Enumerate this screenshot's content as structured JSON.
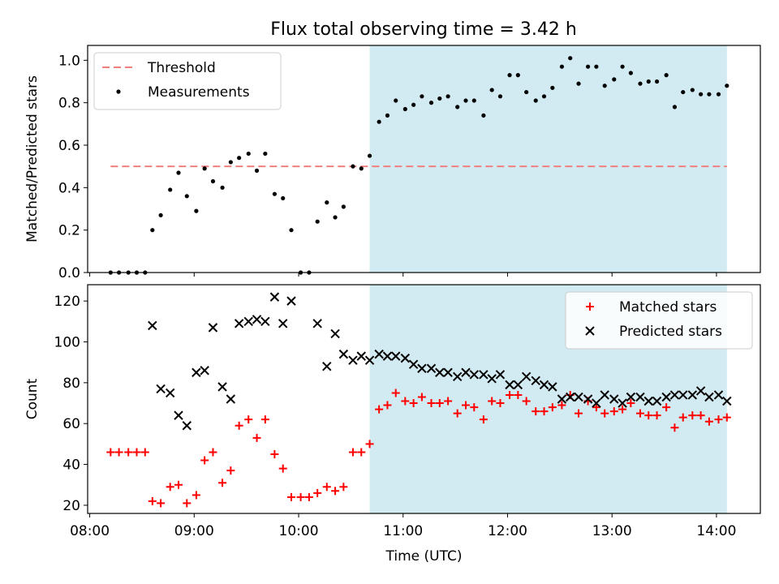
{
  "figure_title": "Flux total observing time = 3.42 h",
  "chart_data": [
    {
      "type": "scatter",
      "ylabel": "Matched/Predicted stars",
      "xlabel": "",
      "ylim": [
        0,
        1.07
      ],
      "yticks": [
        0.0,
        0.2,
        0.4,
        0.6,
        0.8,
        1.0
      ],
      "ytick_labels": [
        "0.0",
        "0.2",
        "0.4",
        "0.6",
        "0.8",
        "1.0"
      ],
      "x_axis": "time (hours, UTC)",
      "xlim": [
        7.98,
        14.42
      ],
      "shaded_interval": {
        "start": 10.68,
        "end": 14.1,
        "color": "#add8e6"
      },
      "legend_position": "upper left",
      "threshold": {
        "name": "Threshold",
        "y": 0.5,
        "x_start": 8.2,
        "x_end": 14.1,
        "color": "#f08080",
        "style": "dashed"
      },
      "series": [
        {
          "name": "Measurements",
          "marker": "dot",
          "color": "#000000",
          "x": [
            8.2,
            8.28,
            8.37,
            8.45,
            8.53,
            8.6,
            8.68,
            8.77,
            8.85,
            8.93,
            9.02,
            9.1,
            9.18,
            9.27,
            9.35,
            9.43,
            9.52,
            9.6,
            9.68,
            9.77,
            9.85,
            9.93,
            10.02,
            10.1,
            10.18,
            10.27,
            10.35,
            10.43,
            10.52,
            10.6,
            10.68,
            10.77,
            10.85,
            10.93,
            11.02,
            11.1,
            11.18,
            11.27,
            11.35,
            11.43,
            11.52,
            11.6,
            11.68,
            11.77,
            11.85,
            11.93,
            12.02,
            12.1,
            12.18,
            12.27,
            12.35,
            12.43,
            12.52,
            12.6,
            12.68,
            12.77,
            12.85,
            12.93,
            13.02,
            13.1,
            13.18,
            13.27,
            13.35,
            13.43,
            13.52,
            13.6,
            13.68,
            13.77,
            13.85,
            13.93,
            14.02,
            14.1
          ],
          "y": [
            0.0,
            0.0,
            0.0,
            0.0,
            0.0,
            0.2,
            0.27,
            0.39,
            0.47,
            0.36,
            0.29,
            0.49,
            0.43,
            0.4,
            0.52,
            0.54,
            0.56,
            0.48,
            0.56,
            0.37,
            0.35,
            0.2,
            0.0,
            0.0,
            0.24,
            0.33,
            0.26,
            0.31,
            0.5,
            0.49,
            0.55,
            0.71,
            0.74,
            0.81,
            0.77,
            0.79,
            0.83,
            0.8,
            0.82,
            0.83,
            0.78,
            0.81,
            0.81,
            0.74,
            0.86,
            0.83,
            0.93,
            0.93,
            0.85,
            0.81,
            0.83,
            0.87,
            0.97,
            1.01,
            0.89,
            0.97,
            0.97,
            0.88,
            0.91,
            0.97,
            0.94,
            0.89,
            0.9,
            0.9,
            0.93,
            0.78,
            0.85,
            0.86,
            0.84,
            0.84,
            0.84,
            0.88
          ]
        }
      ]
    },
    {
      "type": "scatter",
      "ylabel": "Count",
      "xlabel": "Time (UTC)",
      "ylim": [
        16,
        128
      ],
      "yticks": [
        20,
        40,
        60,
        80,
        100,
        120
      ],
      "ytick_labels": [
        "20",
        "40",
        "60",
        "80",
        "100",
        "120"
      ],
      "x_axis": "time (hours, UTC)",
      "xlim": [
        7.98,
        14.42
      ],
      "xticks": [
        8,
        9,
        10,
        11,
        12,
        13,
        14
      ],
      "xtick_labels": [
        "08:00",
        "09:00",
        "10:00",
        "11:00",
        "12:00",
        "13:00",
        "14:00"
      ],
      "shaded_interval": {
        "start": 10.68,
        "end": 14.1,
        "color": "#add8e6"
      },
      "legend_position": "upper right",
      "series": [
        {
          "name": "Matched stars",
          "marker": "plus",
          "color": "#ff0000",
          "x": [
            8.2,
            8.28,
            8.37,
            8.45,
            8.53,
            8.6,
            8.68,
            8.77,
            8.85,
            8.93,
            9.02,
            9.1,
            9.18,
            9.27,
            9.35,
            9.43,
            9.52,
            9.6,
            9.68,
            9.77,
            9.85,
            9.93,
            10.02,
            10.1,
            10.18,
            10.27,
            10.35,
            10.43,
            10.52,
            10.6,
            10.68,
            10.77,
            10.85,
            10.93,
            11.02,
            11.1,
            11.18,
            11.27,
            11.35,
            11.43,
            11.52,
            11.6,
            11.68,
            11.77,
            11.85,
            11.93,
            12.02,
            12.1,
            12.18,
            12.27,
            12.35,
            12.43,
            12.52,
            12.6,
            12.68,
            12.77,
            12.85,
            12.93,
            13.02,
            13.1,
            13.18,
            13.27,
            13.35,
            13.43,
            13.52,
            13.6,
            13.68,
            13.77,
            13.85,
            13.93,
            14.02,
            14.1
          ],
          "y": [
            46,
            46,
            46,
            46,
            46,
            22,
            21,
            29,
            30,
            21,
            25,
            42,
            46,
            31,
            37,
            59,
            62,
            53,
            62,
            45,
            38,
            24,
            24,
            24,
            26,
            29,
            27,
            29,
            46,
            46,
            50,
            67,
            69,
            75,
            71,
            70,
            73,
            70,
            70,
            71,
            65,
            69,
            68,
            62,
            71,
            70,
            74,
            74,
            71,
            66,
            66,
            68,
            69,
            74,
            65,
            71,
            68,
            65,
            66,
            67,
            70,
            65,
            64,
            64,
            68,
            58,
            63,
            64,
            64,
            61,
            62,
            63
          ]
        },
        {
          "name": "Predicted stars",
          "marker": "x",
          "color": "#000000",
          "x": [
            8.6,
            8.68,
            8.77,
            8.85,
            8.93,
            9.02,
            9.1,
            9.18,
            9.27,
            9.35,
            9.43,
            9.52,
            9.6,
            9.68,
            9.77,
            9.85,
            9.93,
            10.18,
            10.27,
            10.35,
            10.43,
            10.52,
            10.6,
            10.68,
            10.77,
            10.85,
            10.93,
            11.02,
            11.1,
            11.18,
            11.27,
            11.35,
            11.43,
            11.52,
            11.6,
            11.68,
            11.77,
            11.85,
            11.93,
            12.02,
            12.1,
            12.18,
            12.27,
            12.35,
            12.43,
            12.52,
            12.6,
            12.68,
            12.77,
            12.85,
            12.93,
            13.02,
            13.1,
            13.18,
            13.27,
            13.35,
            13.43,
            13.52,
            13.6,
            13.68,
            13.77,
            13.85,
            13.93,
            14.02,
            14.1
          ],
          "y": [
            108,
            77,
            75,
            64,
            59,
            85,
            86,
            107,
            78,
            72,
            109,
            110,
            111,
            110,
            122,
            109,
            120,
            109,
            88,
            104,
            94,
            91,
            93,
            91,
            94,
            93,
            93,
            92,
            89,
            87,
            87,
            85,
            85,
            83,
            85,
            84,
            84,
            82,
            84,
            79,
            79,
            83,
            81,
            79,
            78,
            72,
            73,
            73,
            72,
            70,
            74,
            72,
            70,
            73,
            73,
            71,
            71,
            73,
            74,
            74,
            74,
            76,
            73,
            74,
            71
          ]
        }
      ]
    }
  ]
}
